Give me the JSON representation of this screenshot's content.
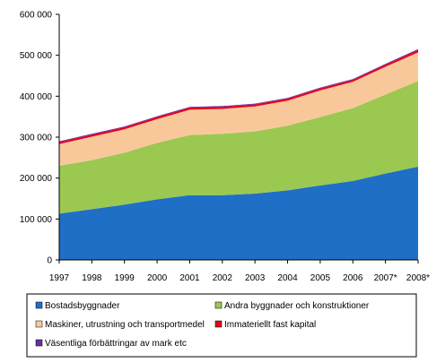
{
  "chart_data": {
    "type": "area",
    "stacked": true,
    "title": "",
    "xlabel": "",
    "ylabel": "",
    "categories": [
      "1997",
      "1998",
      "1999",
      "2000",
      "2001",
      "2002",
      "2003",
      "2004",
      "2005",
      "2006",
      "2007*",
      "2008*"
    ],
    "ylim": [
      0,
      600000
    ],
    "yticks": [
      0,
      100000,
      200000,
      300000,
      400000,
      500000,
      600000
    ],
    "ytick_labels": [
      "0",
      "100 000",
      "200 000",
      "300 000",
      "400 000",
      "500 000",
      "600 000"
    ],
    "grid": false,
    "legend_position": "bottom",
    "series": [
      {
        "name": "Bostadsbyggnader",
        "color": "#1f6fc6",
        "values": [
          113000,
          124000,
          135000,
          148000,
          158000,
          158000,
          162000,
          170000,
          182000,
          193000,
          211000,
          228000
        ]
      },
      {
        "name": "Andra byggnader och konstruktioner",
        "color": "#9bc850",
        "values": [
          117000,
          120000,
          127000,
          138000,
          147000,
          150000,
          152000,
          158000,
          167000,
          178000,
          193000,
          209000
        ]
      },
      {
        "name": "Maskiner, utrustning och transportmedel",
        "color": "#f9c89a",
        "values": [
          53000,
          57000,
          57000,
          58000,
          62000,
          61000,
          61000,
          61000,
          65000,
          64000,
          68000,
          70000
        ]
      },
      {
        "name": "Immateriellt fast kapital",
        "color": "#e8001c",
        "values": [
          5000,
          5000,
          5000,
          5000,
          5000,
          5000,
          5000,
          5000,
          5000,
          5000,
          5000,
          6000
        ]
      },
      {
        "name": "Väsentliga förbättringar av mark etc",
        "color": "#6b2fa1",
        "values": [
          2000,
          2000,
          2000,
          2000,
          2000,
          2000,
          2000,
          2000,
          2000,
          2000,
          2000,
          2000
        ]
      }
    ]
  }
}
